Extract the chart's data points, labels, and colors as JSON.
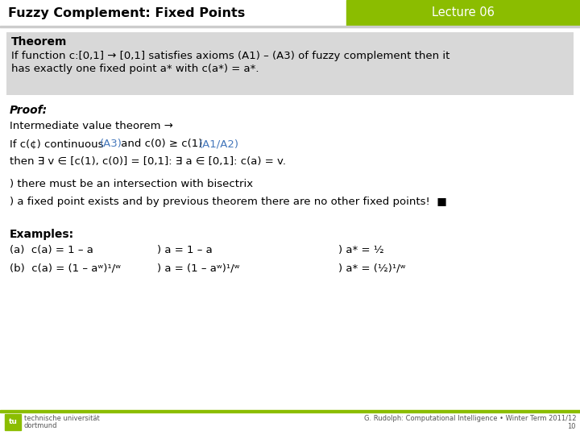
{
  "title": "Fuzzy Complement: Fixed Points",
  "lecture": "Lecture 06",
  "header_bg": "#8BBD00",
  "header_text_color": "#FFFFFF",
  "title_color": "#000000",
  "slide_bg": "#FFFFFF",
  "theorem_bg": "#D8D8D8",
  "blue_color": "#4477BB",
  "footer_line_color": "#8BBD00",
  "theorem_title": "Theorem",
  "theorem_body_line1": "If function c:[0,1] → [0,1] satisfies axioms (A1) – (A3) of fuzzy complement then it",
  "theorem_body_line2": "has exactly one fixed point a* with c(a*) = a*.",
  "proof_label": "Proof:",
  "proof_line0": "Intermediate value theorem →",
  "proof_line1a": "If c(¢) continuous  ",
  "proof_line1b": "(A3)",
  "proof_line1c": " and c(0) ≥ c(1)  ",
  "proof_line1d": "(A1/A2)",
  "proof_line2": "then ∃ v ∈ [c(1), c(0)] = [0,1]: ∃ a ∈ [0,1]: c(a) = v.",
  "proof_line3": ") there must be an intersection with bisectrix",
  "proof_line4": ") a fixed point exists and by previous theorem there are no other fixed points!  ■",
  "examples_title": "Examples:",
  "ex_a1": "(a)  c(a) = 1 – a",
  "ex_a2": ") a = 1 – a",
  "ex_a3": ") a* = ½",
  "ex_b1": "(b)  c(a) = (1 – aʷ)¹/ʷ",
  "ex_b2": ") a = (1 – aʷ)¹/ʷ",
  "ex_b3": ") a* = (½)¹/ʷ",
  "footer_left1": "technische universität",
  "footer_left2": "dortmund",
  "footer_right1": "G. Rudolph: Computational Intelligence • Winter Term 2011/12",
  "footer_right2": "10"
}
